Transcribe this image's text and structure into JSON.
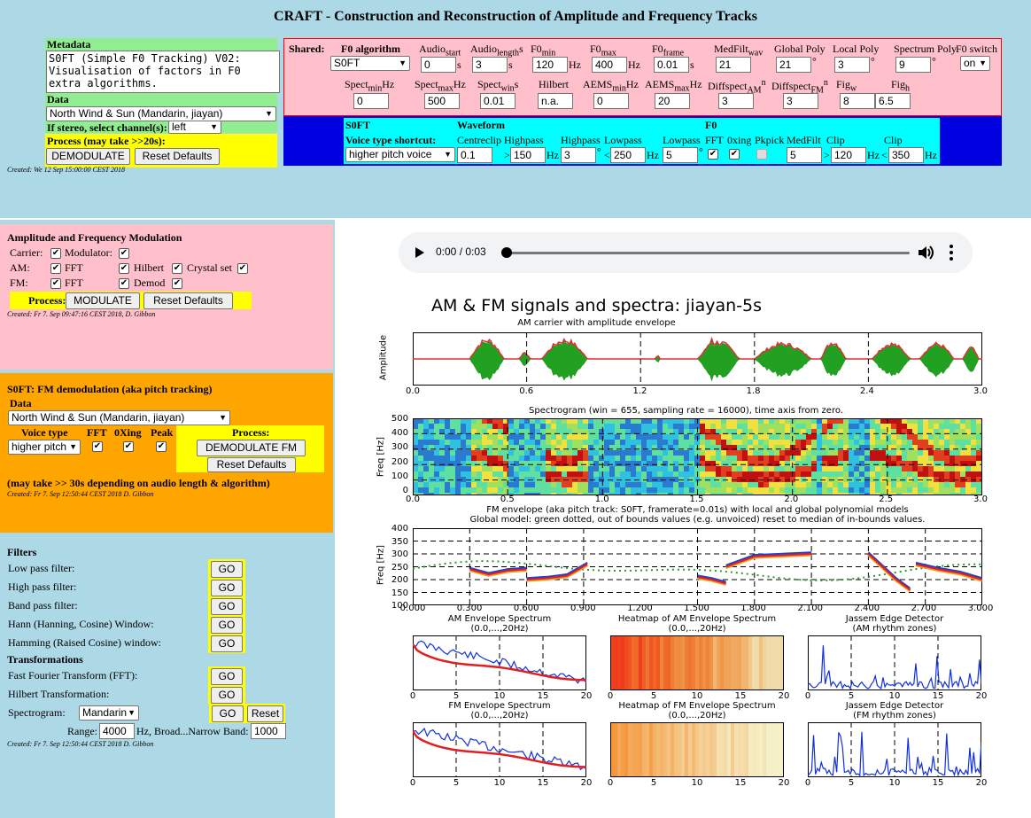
{
  "title": "CRAFT - Construction and Reconstruction of Amplitude and Frequency Tracks",
  "meta": {
    "label": "Metadata",
    "text": "S0FT (Simple F0 Tracking) V02: Visualisation of factors in F0 extra algorithms.",
    "data_label": "Data",
    "data_value": "North Wind & Sun (Mandarin, jiayan)",
    "stereo_label": "If stereo, select channel(s):",
    "stereo_value": "left",
    "process_label": "Process (may take >>20s):",
    "demod_btn": "DEMODULATE",
    "reset_btn": "Reset Defaults",
    "created": "Created: We 12 Sep 15:00:00 CEST 2018"
  },
  "shared": {
    "label": "Shared:",
    "f0alg_label": "F0 algorithm",
    "f0alg_value": "S0FT",
    "row1": [
      {
        "label": "Audio",
        "sub": "start",
        "val": "0",
        "unit": "s"
      },
      {
        "label": "Audio",
        "sub": "length",
        "tail": "s",
        "val": "3",
        "unit": "s"
      },
      {
        "label": "F0",
        "sub": "min",
        "val": "120",
        "unit": "Hz"
      },
      {
        "label": "F0",
        "sub": "max",
        "val": "400",
        "unit": "Hz"
      },
      {
        "label": "F0",
        "sub": "frame",
        "val": "0.01",
        "unit": "s"
      },
      {
        "label": "MedFilt",
        "sub": "wav",
        "val": "21",
        "unit": ""
      },
      {
        "label": "Global Poly",
        "val": "21",
        "unit": "°"
      },
      {
        "label": "Local Poly",
        "val": "3",
        "unit": "°"
      },
      {
        "label": "Spectrum Poly",
        "val": "9",
        "unit": "°"
      }
    ],
    "f0switch_label": "F0 switch",
    "f0switch_value": "on",
    "row2": [
      {
        "label": "Spect",
        "sub": "min",
        "tail": "Hz",
        "val": "0"
      },
      {
        "label": "Spect",
        "sub": "max",
        "tail": "Hz",
        "val": "500"
      },
      {
        "label": "Spect",
        "sub": "win",
        "tail": "s",
        "val": "0.01"
      },
      {
        "label": "Hilbert",
        "val": "n.a."
      },
      {
        "label": "AEMS",
        "sub": "min",
        "tail": "Hz",
        "val": "0"
      },
      {
        "label": "AEMS",
        "sub": "max",
        "tail": "Hz",
        "val": "20"
      },
      {
        "label": "Diffspect",
        "sub": "AM",
        "sup": "n",
        "val": "3"
      },
      {
        "label": "Diffspect",
        "sub": "FM",
        "sup": "n",
        "val": "3"
      },
      {
        "label": "Fig",
        "sub": "w",
        "val": "8"
      },
      {
        "label": "Fig",
        "sub": "h",
        "val": "6.5"
      }
    ]
  },
  "cyan": {
    "s0ft": "S0FT",
    "voice_label": "Voice type shortcut:",
    "voice_value": "higher pitch voice",
    "waveform": "Waveform",
    "centreclip": "Centreclip",
    "highpass": "Highpass",
    "highpass2": "Highpass",
    "lowpass": "Lowpass",
    "lowpass2": "Lowpass",
    "f0": "F0",
    "fft": "FFT",
    "oxing": "0xing",
    "pkpick": "Pkpick",
    "medfilt": "MedFilt",
    "clip": "Clip",
    "clip2": "Clip",
    "v_centre": "0.1",
    "v_hp": "150",
    "v_hp2": "3",
    "v_lp": "250",
    "v_lp2": "5",
    "v_med": "5",
    "v_clip": "120",
    "v_clip2": "350",
    "gt": ">",
    "lt": "<",
    "hz": "Hz",
    "deg": "°"
  },
  "amfm": {
    "title": "Amplitude and Frequency Modulation",
    "carrier": "Carrier:",
    "modulator": "Modulator:",
    "am": "AM:",
    "fm": "FM:",
    "fft": "FFT",
    "hilbert": "Hilbert",
    "crystal": "Crystal set",
    "demod": "Demod",
    "process": "Process:",
    "modulate_btn": "MODULATE",
    "reset_btn": "Reset Defaults",
    "created": "Created: Fr 7. Sep 09:47:16 CEST 2018, D. Gibbon"
  },
  "s0ft": {
    "title": "S0FT: FM demodulation (aka pitch tracking)",
    "data": "Data",
    "data_value": "North Wind & Sun (Mandarin, jiayan)",
    "voice_type": "Voice type",
    "fft": "FFT",
    "oxing": "0Xing",
    "peak": "Peak",
    "process": "Process:",
    "voice_value": "higher pitch",
    "demod_btn": "DEMODULATE FM",
    "reset_btn": "Reset Defaults",
    "note": "(may take >> 30s depending on audio length & algorithm)",
    "created": "Created: Fr 7. Sep 12:50:44 CEST 2018 D. Gibbon"
  },
  "filters": {
    "title": "Filters",
    "items": [
      "Low pass filter:",
      "High pass filter:",
      "Band pass filter:",
      "Hann (Hanning, Cosine) Window:",
      "Hamming (Raised Cosine) window:"
    ],
    "transform_title": "Transformations",
    "transforms": [
      "Fast Fourier Transform (FFT):",
      "Hilbert Transformation:"
    ],
    "go": "GO",
    "spectrogram": "Spectrogram:",
    "spec_value": "Mandarin",
    "reset": "Reset",
    "range": "Range:",
    "range_value": "4000",
    "broad": "Hz, Broad...Narrow Band:",
    "band_value": "1000",
    "created": "Created: Fr 7. Sep 12:50:44 CEST 2018 D. Gibbon"
  },
  "player": {
    "time": "0:00 / 0:03"
  },
  "fig": {
    "title": "AM & FM signals and spectra: jiayan-5s",
    "p1_title": "AM carrier with amplitude envelope",
    "p1_ylabel": "Amplitude",
    "p1_xticks": [
      "0.0",
      "0.6",
      "1.2",
      "1.8",
      "2.4",
      "3.0"
    ],
    "p2_title": "Spectrogram (win = 655, sampling rate = 16000), time axis from zero.",
    "p2_ylabel": "Freq [Hz]",
    "p2_xticks": [
      "0.0",
      "0.5",
      "1.0",
      "1.5",
      "2.0",
      "2.5",
      "3.0"
    ],
    "p2_yticks": [
      "500",
      "400",
      "300",
      "200",
      "100",
      "0"
    ],
    "p3_title1": "FM envelope (aka pitch track: S0FT, framerate=0.01s) with local and global polynomial models",
    "p3_title2": "Global model: green dotted, out of bounds values (e.g. unvoiced) reset to median of in-bounds values.",
    "p3_ylabel": "Freq [Hz]",
    "p3_xticks": [
      "0.000",
      "0.300",
      "0.600",
      "0.900",
      "1.200",
      "1.500",
      "1.800",
      "2.100",
      "2.400",
      "2.700",
      "3.000"
    ],
    "p3_yticks": [
      "400",
      "350",
      "300",
      "250",
      "200",
      "150",
      "100"
    ],
    "s1": "AM Envelope Spectrum",
    "s2": "Heatmap of AM Envelope Spectrum",
    "s3": "Jassem Edge Detector",
    "s4": "FM Envelope Spectrum",
    "s5": "Heatmap of FM Envelope Spectrum",
    "s6": "Jassem Edge Detector",
    "range": "(0.0,...,20Hz)",
    "am_zones": "(AM rhythm zones)",
    "fm_zones": "(FM rhythm zones)",
    "sticks": [
      "0",
      "5",
      "10",
      "15",
      "20"
    ]
  }
}
